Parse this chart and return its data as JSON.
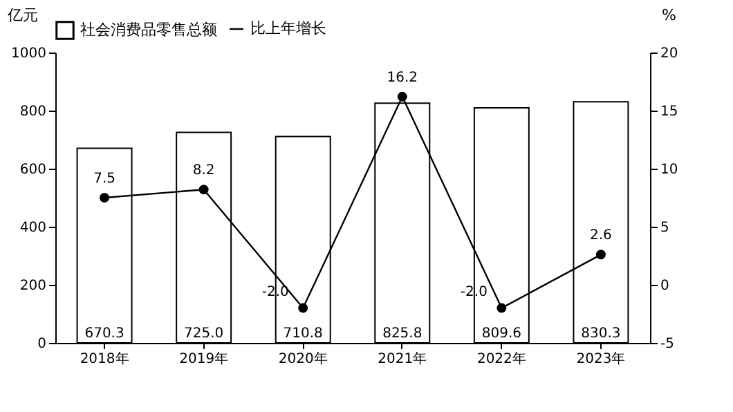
{
  "chart_data": {
    "type": "bar",
    "categories": [
      "2018年",
      "2019年",
      "2020年",
      "2021年",
      "2022年",
      "2023年"
    ],
    "ylabel": "亿元",
    "y2label": "%",
    "ylim": [
      0,
      1000
    ],
    "yticks": [
      0,
      200,
      400,
      600,
      800,
      1000
    ],
    "y2lim": [
      -5,
      20
    ],
    "y2ticks": [
      -5,
      0,
      5,
      10,
      15,
      20
    ],
    "series": [
      {
        "name": "社会消费品零售总额",
        "color": "#ffffff",
        "values": [
          670.3,
          725.0,
          710.8,
          825.8,
          809.6,
          830.3
        ],
        "value_labels": [
          "670.3",
          "725.0",
          "710.8",
          "825.8",
          "809.6",
          "830.3"
        ]
      },
      {
        "name": "比上年增长",
        "type": "line",
        "axis": "y2",
        "color": "#000000",
        "values": [
          7.5,
          8.2,
          -2.0,
          16.2,
          -2.0,
          2.6
        ],
        "value_labels": [
          "7.5",
          "8.2",
          "-2.0",
          "16.2",
          "-2.0",
          "2.6"
        ]
      }
    ],
    "legend": "top",
    "marker": "circle",
    "line_style": "solid",
    "grid": false
  }
}
